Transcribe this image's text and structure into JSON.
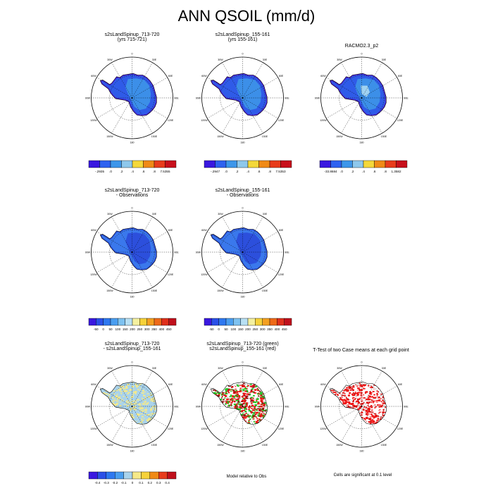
{
  "title": "ANN QSOIL (mm/d)",
  "lon_labels": [
    "0",
    "30E",
    "60E",
    "90E",
    "120E",
    "150E",
    "180",
    "150W",
    "120W",
    "90W",
    "60W",
    "30W"
  ],
  "colors": {
    "land_blue": "#2f5be8",
    "land_light": "#3c8fe8",
    "land_dark": "#1e38d0",
    "edge_violet": "#4a26d8",
    "obs_blue": "#3a78ec",
    "obs_dark": "#2c4fdc",
    "diff_yellow": "#f5e98a",
    "diff_lightblue": "#a9d3ec",
    "sig_red": "#ee1111",
    "sig_green": "#1cc81c"
  },
  "rows": [
    {
      "panels": [
        {
          "title_lines": [
            "s2sLandSpinup_713-720",
            "(yrs 715-721)"
          ],
          "style": "model"
        },
        {
          "title_lines": [
            "s2sLandSpinup_155-161",
            "(yrs 155-161)"
          ],
          "style": "model"
        },
        {
          "title_lines": [
            "RACMO2.3_p2"
          ],
          "style": "racmo"
        }
      ],
      "colorbars": [
        {
          "labels": [
            "-.2935",
            ".0",
            ".2",
            ".4",
            ".6",
            ".8",
            "7.5355"
          ],
          "colors": [
            "#3a18e0",
            "#2f62f0",
            "#3d96ea",
            "#8ec8ec",
            "#f4d83a",
            "#f08a16",
            "#e83c1c",
            "#c8101c"
          ]
        },
        {
          "labels": [
            "-.2947",
            ".0",
            ".2",
            ".4",
            ".6",
            ".8",
            "7.5353"
          ],
          "colors": [
            "#3a18e0",
            "#2f62f0",
            "#3d96ea",
            "#8ec8ec",
            "#f4d83a",
            "#f08a16",
            "#e83c1c",
            "#c8101c"
          ]
        },
        {
          "labels": [
            "-33.8684",
            ".0",
            ".2",
            ".4",
            ".6",
            ".8",
            "1.3582"
          ],
          "colors": [
            "#3a18e0",
            "#2f62f0",
            "#3d96ea",
            "#8ec8ec",
            "#f4d83a",
            "#f08a16",
            "#e83c1c",
            "#c8101c"
          ]
        }
      ]
    },
    {
      "panels": [
        {
          "title_lines": [
            "s2sLandSpinup_713-720",
            "- Observations"
          ],
          "style": "obs"
        },
        {
          "title_lines": [
            "s2sLandSpinup_155-161",
            "- Observations"
          ],
          "style": "obs"
        }
      ],
      "colorbars": [
        {
          "labels": [
            "-50",
            "0",
            "50",
            "100",
            "150",
            "200",
            "250",
            "300",
            "350",
            "400",
            "450"
          ],
          "colors": [
            "#3a18e0",
            "#2b50e8",
            "#2e78f0",
            "#4a9ef0",
            "#7ec2f0",
            "#b8e0f4",
            "#f4f0a0",
            "#f6d23a",
            "#f4a020",
            "#ee6a18",
            "#e0301c",
            "#c0101c"
          ]
        },
        {
          "labels": [
            "-50",
            "0",
            "50",
            "100",
            "150",
            "200",
            "250",
            "300",
            "350",
            "400",
            "450"
          ],
          "colors": [
            "#3a18e0",
            "#2b50e8",
            "#2e78f0",
            "#4a9ef0",
            "#7ec2f0",
            "#b8e0f4",
            "#f4f0a0",
            "#f6d23a",
            "#f4a020",
            "#ee6a18",
            "#e0301c",
            "#c0101c"
          ]
        }
      ]
    },
    {
      "panels": [
        {
          "title_lines": [
            "s2sLandSpinup_713-720",
            "- s2sLandSpinup_155-161"
          ],
          "style": "diff"
        },
        {
          "title_lines": [
            "s2sLandSpinup_713-720 (green)",
            "s2sLandSpinup_155-161 (red)"
          ],
          "style": "compare"
        },
        {
          "title_lines": [
            "T-Test of two Case means at each grid point"
          ],
          "style": "ttest"
        }
      ],
      "colorbars": [
        {
          "labels": [
            "-0.4",
            "-0.3",
            "-0.2",
            "-0.1",
            "0",
            "0.1",
            "0.2",
            "0.3",
            "0.4"
          ],
          "colors": [
            "#3a18e0",
            "#2b50e8",
            "#2e78f0",
            "#4a9ef0",
            "#a9d3ec",
            "#f5e98a",
            "#f6d23a",
            "#f08a16",
            "#e83c1c",
            "#c0101c"
          ]
        }
      ],
      "notes": [
        "Model relative to Obs",
        "Cells are significant at 0.1 level"
      ]
    }
  ]
}
